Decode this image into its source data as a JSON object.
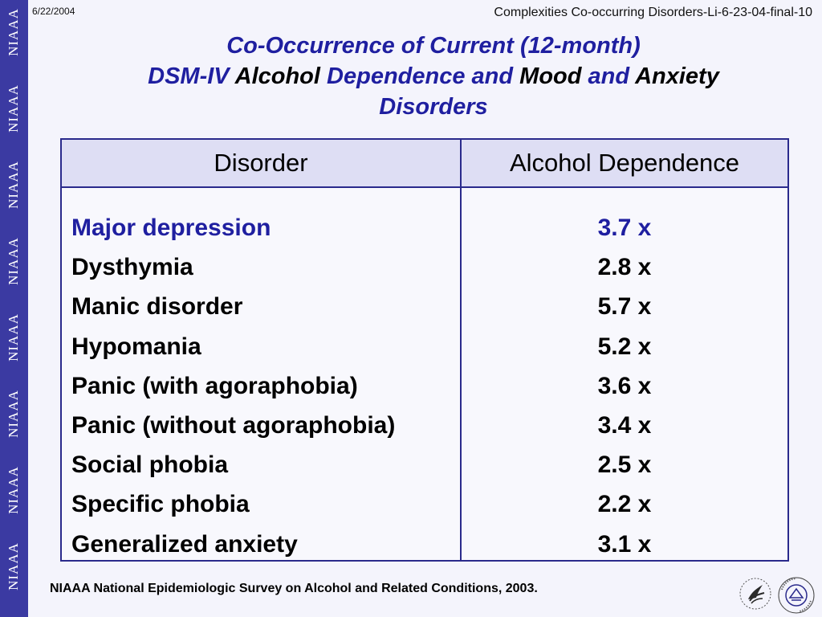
{
  "header": {
    "date": "6/22/2004",
    "file_title": "Complexities Co-occurring Disorders-Li-6-23-04-final-10"
  },
  "sidebar": {
    "brand_word": "NIAAA",
    "repeat_count": 8
  },
  "title": {
    "line1": "Co-Occurrence of Current (12-month)",
    "line2_part1": "DSM-IV",
    "line2_part2": "Alcohol",
    "line2_part3": "Dependence and",
    "line2_part4": "Mood",
    "line2_part5": "and",
    "line2_part6": "Anxiety",
    "line3": "Disorders"
  },
  "table": {
    "headers": [
      "Disorder",
      "Alcohol Dependence"
    ],
    "rows": [
      {
        "disorder": "Major depression",
        "value": "3.7 x",
        "highlight": true
      },
      {
        "disorder": "Dysthymia",
        "value": "2.8 x",
        "highlight": false
      },
      {
        "disorder": "Manic disorder",
        "value": "5.7 x",
        "highlight": false
      },
      {
        "disorder": "Hypomania",
        "value": "5.2 x",
        "highlight": false
      },
      {
        "disorder": "Panic (with agoraphobia)",
        "value": "3.6 x",
        "highlight": false
      },
      {
        "disorder": "Panic (without agoraphobia)",
        "value": "3.4 x",
        "highlight": false
      },
      {
        "disorder": "Social phobia",
        "value": "2.5 x",
        "highlight": false
      },
      {
        "disorder": "Specific phobia",
        "value": "2.2 x",
        "highlight": false
      },
      {
        "disorder": "Generalized anxiety",
        "value": "3.1 x",
        "highlight": false
      }
    ]
  },
  "footer": {
    "source": "NIAAA National Epidemiologic Survey on Alcohol and Related Conditions, 2003.",
    "logos": [
      "hhs-eagle-icon",
      "nih-seal-icon"
    ]
  },
  "colors": {
    "sidebar": "#3b3aa2",
    "title_blue": "#1f1fa0",
    "border": "#2a2a8c",
    "header_fill": "#dedef4",
    "background": "#f4f4fc"
  }
}
